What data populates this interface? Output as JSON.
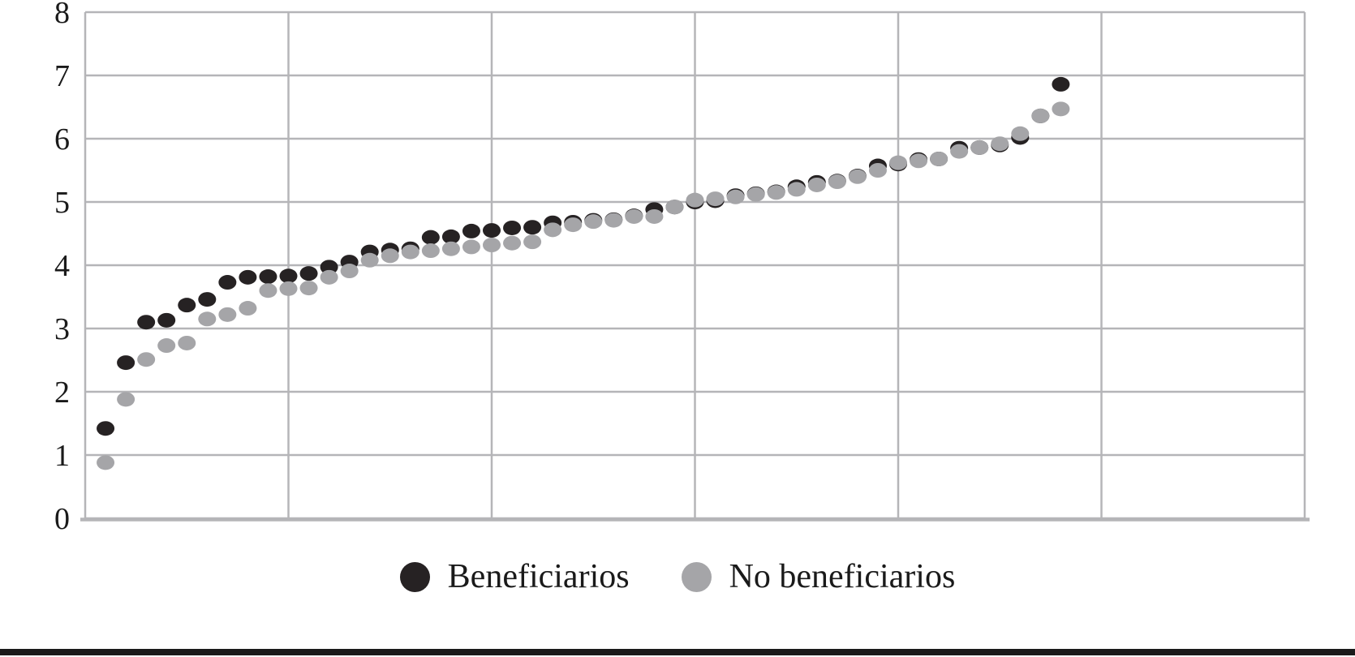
{
  "page": {
    "background": "#ffffff",
    "text_color": "#1a1a1a",
    "gridline_color": "#b5b5b8"
  },
  "legend": {
    "position": "bottom-center",
    "items": [
      {
        "label": "Beneficiarios",
        "marker": "filled-circle",
        "color": "#262223"
      },
      {
        "label": "No beneficiarios",
        "marker": "filled-circle",
        "color": "#a5a5a8"
      }
    ]
  },
  "chart_data": {
    "type": "scatter",
    "title": "",
    "xlabel": "",
    "ylabel": "",
    "xlim": [
      0,
      60
    ],
    "ylim": [
      0,
      8
    ],
    "yticks": [
      0,
      1,
      2,
      3,
      4,
      5,
      6,
      7,
      8
    ],
    "x_tick_labels_visible": false,
    "grid": true,
    "legend_position": "bottom",
    "x": [
      1,
      2,
      3,
      4,
      5,
      6,
      7,
      8,
      9,
      10,
      11,
      12,
      13,
      14,
      15,
      16,
      17,
      18,
      19,
      20,
      21,
      22,
      23,
      24,
      25,
      26,
      27,
      28,
      29,
      30,
      31,
      32,
      33,
      34,
      35,
      36,
      37,
      38,
      39,
      40,
      41,
      42,
      43,
      44,
      45,
      46,
      47,
      48
    ],
    "series": [
      {
        "name": "Beneficiarios",
        "color": "#262223",
        "values": [
          1.42,
          2.46,
          3.1,
          3.13,
          3.37,
          3.46,
          3.73,
          3.81,
          3.82,
          3.83,
          3.87,
          3.97,
          4.05,
          4.21,
          4.24,
          4.26,
          4.44,
          4.45,
          4.54,
          4.55,
          4.59,
          4.6,
          4.67,
          4.68,
          4.71,
          4.72,
          4.78,
          4.88,
          4.92,
          5.0,
          5.02,
          5.1,
          5.13,
          5.16,
          5.24,
          5.31,
          5.33,
          5.41,
          5.57,
          5.6,
          5.67,
          5.68,
          5.85,
          5.86,
          5.9,
          6.02,
          6.36,
          6.86
        ]
      },
      {
        "name": "No beneficiarios",
        "color": "#a5a5a8",
        "values": [
          0.88,
          1.88,
          2.51,
          2.73,
          2.77,
          3.15,
          3.22,
          3.32,
          3.6,
          3.63,
          3.64,
          3.81,
          3.91,
          4.08,
          4.15,
          4.21,
          4.23,
          4.26,
          4.29,
          4.32,
          4.35,
          4.37,
          4.56,
          4.64,
          4.69,
          4.71,
          4.77,
          4.77,
          4.92,
          5.03,
          5.05,
          5.08,
          5.12,
          5.15,
          5.2,
          5.27,
          5.32,
          5.4,
          5.5,
          5.62,
          5.65,
          5.68,
          5.8,
          5.86,
          5.92,
          6.08,
          6.36,
          6.47
        ]
      }
    ]
  }
}
